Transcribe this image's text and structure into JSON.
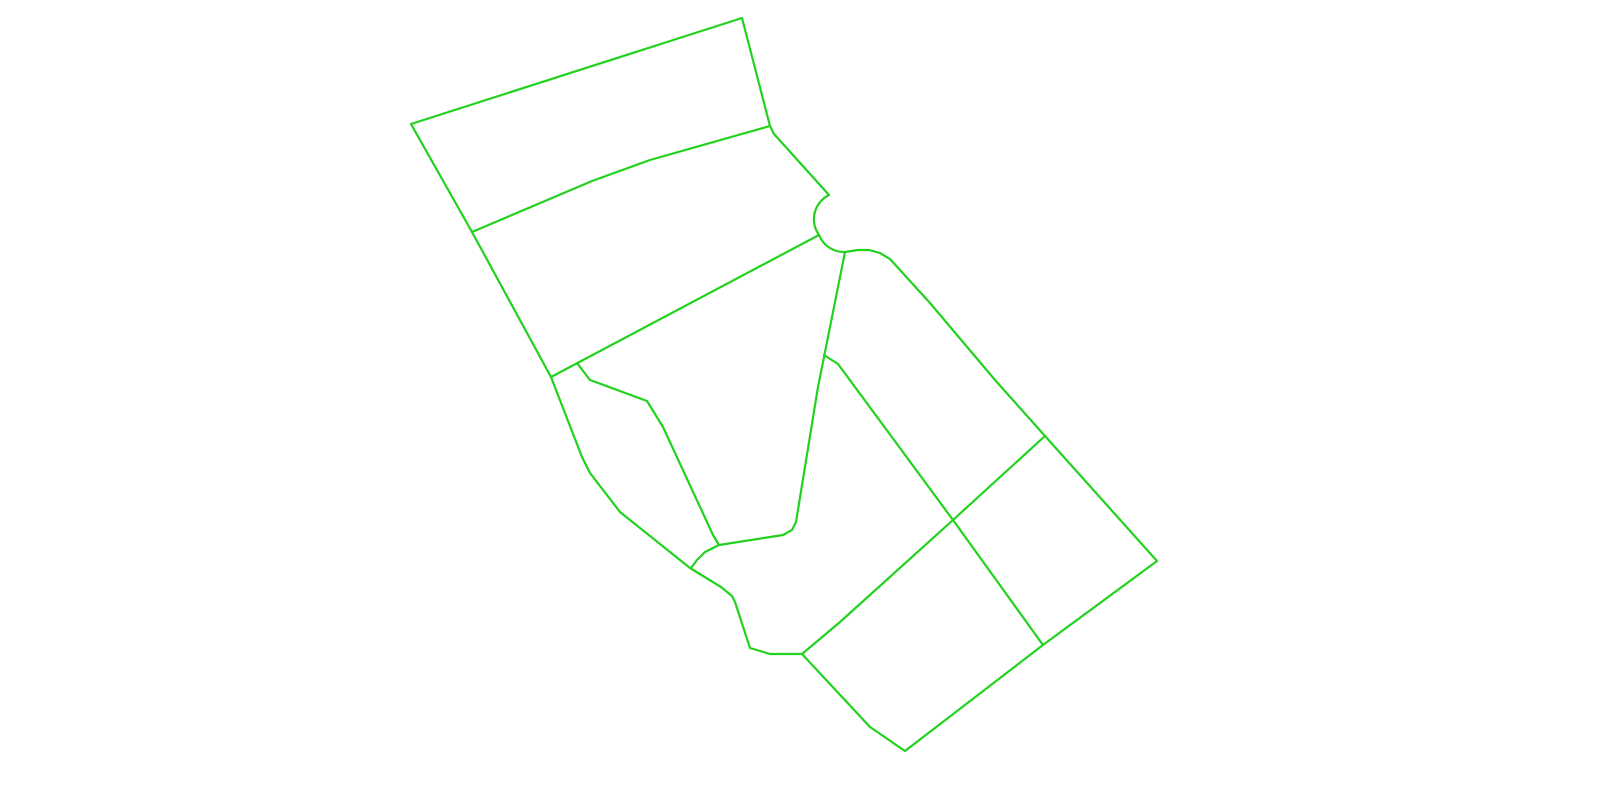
{
  "map": {
    "line_color": "#22d21e",
    "background_color": "#ffffff",
    "labels": []
  }
}
